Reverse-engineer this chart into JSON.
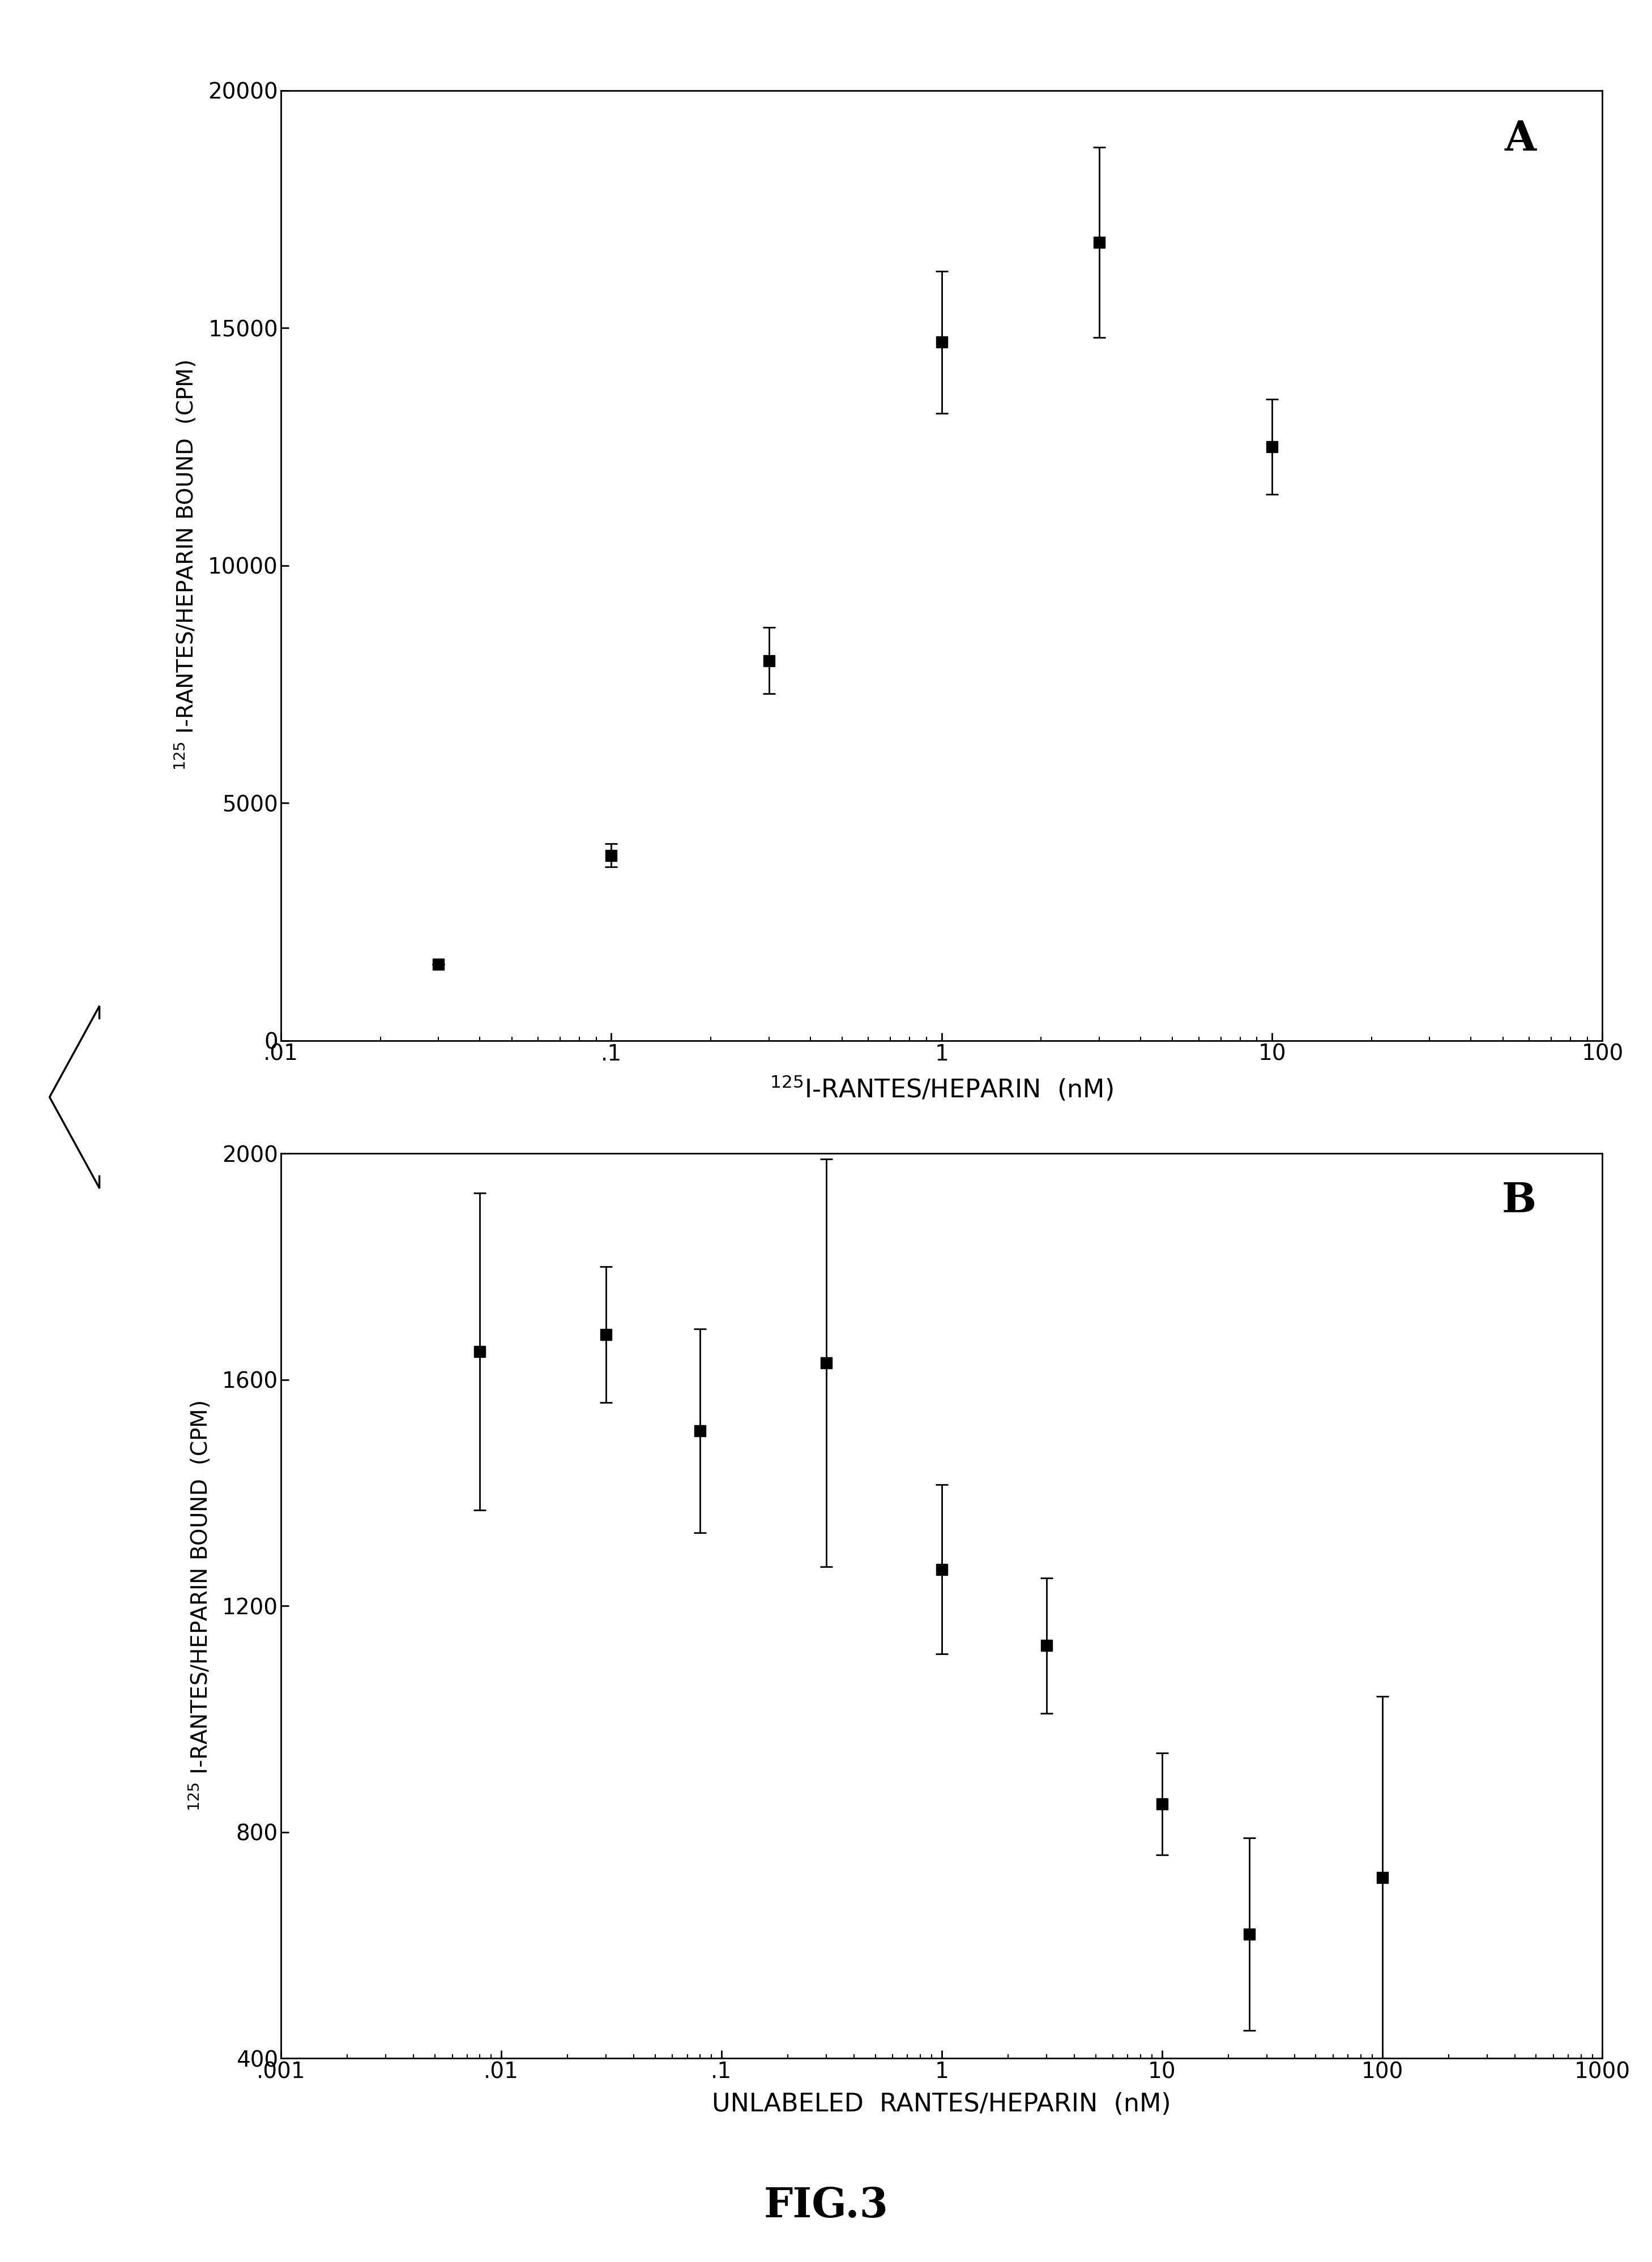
{
  "panel_A": {
    "x": [
      0.03,
      0.1,
      0.3,
      1.0,
      3.0,
      10.0
    ],
    "y": [
      1600,
      3900,
      8000,
      14700,
      16800,
      12500
    ],
    "yerr": [
      0,
      250,
      700,
      1500,
      2000,
      1000
    ],
    "xlabel": "$^{125}$I-RANTES/HEPARIN  (nM)",
    "ylabel": "$^{125}$ I-RANTES/HEPARIN BOUND  (CPM)",
    "label": "A",
    "xlim": [
      0.01,
      100
    ],
    "ylim": [
      0,
      20000
    ],
    "yticks": [
      0,
      5000,
      10000,
      15000,
      20000
    ],
    "ytick_labels": [
      "0",
      "5000",
      "10000",
      "15000",
      "20000"
    ],
    "xtick_vals": [
      0.01,
      0.1,
      1,
      10,
      100
    ],
    "xtick_labels": [
      ".01",
      ".1",
      "1",
      "10",
      "100"
    ]
  },
  "panel_B": {
    "x": [
      0.008,
      0.03,
      0.08,
      0.3,
      1.0,
      3.0,
      10.0,
      25.0,
      100.0
    ],
    "y": [
      1650,
      1680,
      1510,
      1630,
      1265,
      1130,
      850,
      620,
      720
    ],
    "yerr": [
      280,
      120,
      180,
      360,
      150,
      120,
      90,
      170,
      320
    ],
    "xlabel": "UNLABELED  RANTES/HEPARIN  (nM)",
    "ylabel": "$^{125}$ I-RANTES/HEPARIN BOUND  (CPM)",
    "label": "B",
    "xlim": [
      0.001,
      1000
    ],
    "ylim": [
      400,
      2000
    ],
    "yticks": [
      400,
      800,
      1200,
      1600,
      2000
    ],
    "ytick_labels": [
      "400",
      "800",
      "1200",
      "1600",
      "2000"
    ],
    "xtick_vals": [
      0.001,
      0.01,
      0.1,
      1,
      10,
      100,
      1000
    ],
    "xtick_labels": [
      ".001",
      ".01",
      ".1",
      "1",
      "10",
      "100",
      "1000"
    ]
  },
  "fig_label": "FIG.3",
  "background_color": "#ffffff",
  "line_color": "#000000",
  "marker": "s",
  "markersize": 14,
  "linewidth": 2.5,
  "capsize": 8,
  "elinewidth": 2.0,
  "xlabel_fontsize": 32,
  "ylabel_fontsize": 28,
  "tick_fontsize": 28,
  "panel_label_fontsize": 52,
  "figlabel_fontsize": 52
}
